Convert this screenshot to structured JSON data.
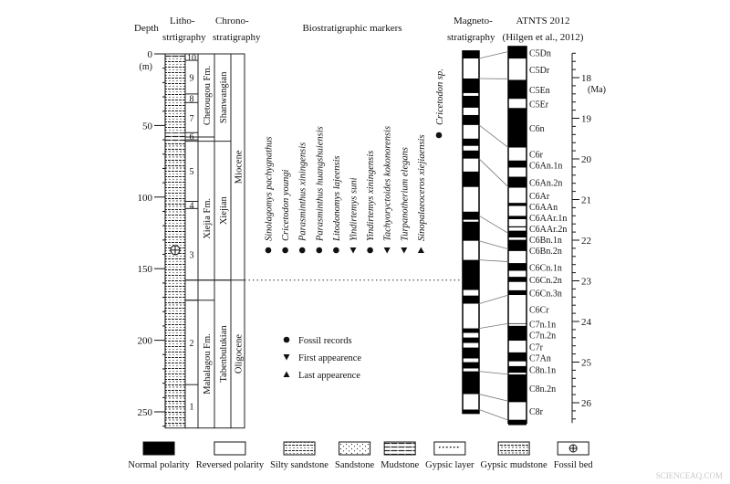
{
  "headers": {
    "depth": "Depth",
    "litho1": "Litho-",
    "litho2": "strtigraphy",
    "chrono1": "Chrono-",
    "chrono2": "stratigraphy",
    "bio": "Biostratigraphic markers",
    "magneto1": "Magneto-",
    "magneto2": "stratigraphy",
    "atnts1": "ATNTS 2012",
    "atnts2": "(Hilgen et al., 2012)"
  },
  "depth_axis": {
    "unit": "(m)",
    "labels": [
      0,
      50,
      100,
      150,
      200,
      250
    ],
    "max": 260
  },
  "age_axis": {
    "unit": "(Ma)",
    "labels": [
      18,
      19,
      20,
      21,
      22,
      23,
      24,
      25,
      26
    ]
  },
  "members": [
    {
      "label": "10",
      "top": 0,
      "bottom": 4.5
    },
    {
      "label": "9",
      "top": 4.5,
      "bottom": 28
    },
    {
      "label": "8",
      "top": 28,
      "bottom": 34
    },
    {
      "label": "7",
      "top": 34,
      "bottom": 55
    },
    {
      "label": "6",
      "top": 55,
      "bottom": 60
    },
    {
      "label": "5",
      "top": 60,
      "bottom": 103
    },
    {
      "label": "4",
      "top": 103,
      "bottom": 108
    },
    {
      "label": "3",
      "top": 108,
      "bottom": 172
    },
    {
      "label": "2",
      "top": 172,
      "bottom": 231
    },
    {
      "label": "1",
      "top": 231,
      "bottom": 261
    }
  ],
  "formations": [
    {
      "label": "Chetougou Fm.",
      "top": 0,
      "bottom": 58
    },
    {
      "label": "Xiejia Fm.",
      "top": 58,
      "bottom": 172
    },
    {
      "label": "Mahalagou Fm.",
      "top": 172,
      "bottom": 261
    }
  ],
  "stages": [
    {
      "label": "Shanwangian",
      "top": 0,
      "bottom": 61
    },
    {
      "label": "Xiejian",
      "top": 61,
      "bottom": 158
    },
    {
      "label": "Tabenbulukian",
      "top": 158,
      "bottom": 261
    }
  ],
  "epochs": [
    {
      "label": "Miocene",
      "top": 0,
      "bottom": 158
    },
    {
      "label": "Oligocene",
      "top": 158,
      "bottom": 261
    }
  ],
  "lithology": [
    {
      "type": "mudstone",
      "top": 0,
      "bottom": 3
    },
    {
      "type": "silty",
      "top": 3,
      "bottom": 55
    },
    {
      "type": "mudstone",
      "top": 55,
      "bottom": 62
    },
    {
      "type": "gypsic",
      "top": 62,
      "bottom": 80
    },
    {
      "type": "silty",
      "top": 80,
      "bottom": 100
    },
    {
      "type": "gypsic",
      "top": 100,
      "bottom": 112
    },
    {
      "type": "silty",
      "top": 112,
      "bottom": 172
    },
    {
      "type": "gypsic",
      "top": 172,
      "bottom": 176
    },
    {
      "type": "silty",
      "top": 176,
      "bottom": 228
    },
    {
      "type": "gypsic",
      "top": 228,
      "bottom": 261
    }
  ],
  "fossil_bed_depth": 137,
  "species": [
    {
      "name": "Sinolagomys pachygnathus",
      "marker": "fossil"
    },
    {
      "name": "Cricetodon youngi",
      "marker": "fossil"
    },
    {
      "name": "Parasminthus xiningensis",
      "marker": "fossil"
    },
    {
      "name": "Parasminthus huangshuiensis",
      "marker": "fossil"
    },
    {
      "name": "Litodonomys lajeensis",
      "marker": "fossil"
    },
    {
      "name": "Yindirtemys suni",
      "marker": "first"
    },
    {
      "name": "Yindirtemys xiningensis",
      "marker": "fossil"
    },
    {
      "name": "Tachyoryctoides kokonorensis",
      "marker": "first"
    },
    {
      "name": "Turpanotherium elegans",
      "marker": "first"
    },
    {
      "name": "Sinopalaeoceros xiejiaensis",
      "marker": "last"
    }
  ],
  "cricetodon_sp": {
    "name": "Cricetodon sp.",
    "marker": "fossil"
  },
  "marker_legend": [
    {
      "marker": "fossil",
      "label": "Fossil records"
    },
    {
      "marker": "first",
      "label": "First appearence"
    },
    {
      "marker": "last",
      "label": "Last appearence"
    }
  ],
  "magneto_polarity": [
    [
      "N",
      -2,
      3.2
    ],
    [
      "R",
      3.2,
      17.2
    ],
    [
      "N",
      17.2,
      27.4
    ],
    [
      "R",
      27.4,
      29.3
    ],
    [
      "N",
      29.3,
      37.6
    ],
    [
      "R",
      37.6,
      42.7
    ],
    [
      "N",
      42.7,
      49.7
    ],
    [
      "R",
      49.7,
      59.2
    ],
    [
      "N",
      59.2,
      64.3
    ],
    [
      "R",
      64.3,
      67.5
    ],
    [
      "N",
      67.5,
      73.2
    ],
    [
      "R",
      73.2,
      82.2
    ],
    [
      "N",
      82.2,
      93
    ],
    [
      "R",
      93,
      110.2
    ],
    [
      "N",
      110.2,
      115.9
    ],
    [
      "R",
      115.9,
      117.2
    ],
    [
      "N",
      117.2,
      130.6
    ],
    [
      "R",
      130.6,
      143.9
    ],
    [
      "N",
      143.9,
      164.9
    ],
    [
      "R",
      164.9,
      168.8
    ],
    [
      "N",
      168.8,
      174.5
    ],
    [
      "R",
      174.5,
      191.7
    ],
    [
      "N",
      191.7,
      194.9
    ],
    [
      "R",
      194.9,
      198.1
    ],
    [
      "N",
      198.1,
      201.9
    ],
    [
      "R",
      201.9,
      205.1
    ],
    [
      "N",
      205.1,
      212.7
    ],
    [
      "R",
      212.7,
      215.3
    ],
    [
      "N",
      215.3,
      219.7
    ],
    [
      "R",
      219.7,
      221.7
    ],
    [
      "N",
      221.7,
      237.6
    ],
    [
      "R",
      237.6,
      248.4
    ],
    [
      "N",
      248.4,
      251
    ]
  ],
  "atnts_chrons": [
    [
      "N",
      17.235,
      17.533,
      "C5Dn"
    ],
    [
      "R",
      17.533,
      18.056,
      "C5Dr"
    ],
    [
      "N",
      18.056,
      18.524,
      "C5En"
    ],
    [
      "R",
      18.524,
      18.748,
      "C5Er"
    ],
    [
      "N",
      18.748,
      19.722,
      "C6n"
    ],
    [
      "R",
      19.722,
      20.04,
      "C6r"
    ],
    [
      "N",
      20.04,
      20.213,
      "C6An.1n"
    ],
    [
      "R",
      20.213,
      20.439,
      ""
    ],
    [
      "N",
      20.439,
      20.709,
      "C6An.2n"
    ],
    [
      "R",
      20.709,
      21.083,
      "C6Ar"
    ],
    [
      "N",
      21.083,
      21.159,
      "C6AAn"
    ],
    [
      "R",
      21.159,
      21.403,
      ""
    ],
    [
      "N",
      21.403,
      21.483,
      "C6AAr.1n"
    ],
    [
      "R",
      21.483,
      21.659,
      ""
    ],
    [
      "N",
      21.659,
      21.688,
      "C6AAr.2n"
    ],
    [
      "R",
      21.688,
      21.767,
      ""
    ],
    [
      "N",
      21.767,
      21.936,
      "C6Bn.1n"
    ],
    [
      "R",
      21.936,
      21.992,
      ""
    ],
    [
      "N",
      21.992,
      22.268,
      "C6Bn.2n"
    ],
    [
      "R",
      22.268,
      22.564,
      ""
    ],
    [
      "N",
      22.564,
      22.754,
      "C6Cn.1n"
    ],
    [
      "R",
      22.754,
      22.902,
      ""
    ],
    [
      "N",
      22.902,
      23.03,
      "C6Cn.2n"
    ],
    [
      "R",
      23.03,
      23.233,
      ""
    ],
    [
      "N",
      23.233,
      23.35,
      "C6Cn.3n"
    ],
    [
      "R",
      23.35,
      24.044,
      "C6Cr"
    ],
    [
      "N",
      24.044,
      24.061,
      "C7n.1n"
    ],
    [
      "R",
      24.061,
      24.109,
      ""
    ],
    [
      "N",
      24.109,
      24.474,
      "C7n.2n"
    ],
    [
      "R",
      24.474,
      24.761,
      "C7r"
    ],
    [
      "N",
      24.761,
      24.984,
      "C7An"
    ],
    [
      "R",
      24.984,
      25.099,
      ""
    ],
    [
      "N",
      25.099,
      25.264,
      "C8n.1n"
    ],
    [
      "R",
      25.264,
      25.304,
      ""
    ],
    [
      "N",
      25.304,
      25.987,
      "C8n.2n"
    ],
    [
      "R",
      25.987,
      26.42,
      "C8r"
    ],
    [
      "N",
      26.42,
      26.55,
      ""
    ]
  ],
  "correlations": [
    [
      3.2,
      17.36
    ],
    [
      17.2,
      18.03
    ],
    [
      49.7,
      19.72
    ],
    [
      73.2,
      20.69
    ],
    [
      113,
      21.83
    ],
    [
      130.6,
      22.22
    ],
    [
      143.9,
      22.53
    ],
    [
      174.5,
      23.35
    ],
    [
      191.7,
      24.05
    ],
    [
      221.7,
      25.3
    ],
    [
      237.6,
      25.96
    ],
    [
      248.4,
      26.43
    ]
  ],
  "boundary_line_depth": 158,
  "legend": [
    {
      "key": "normal",
      "label": "Normal polarity"
    },
    {
      "key": "reversed",
      "label": "Reversed polarity"
    },
    {
      "key": "silty",
      "label": "Silty sandstone"
    },
    {
      "key": "sandstone",
      "label": "Sandstone"
    },
    {
      "key": "mudstone",
      "label": "Mudstone"
    },
    {
      "key": "gypsumlayer",
      "label": "Gypsic layer"
    },
    {
      "key": "gypsic",
      "label": "Gypsic mudstone"
    },
    {
      "key": "fossilbed",
      "label": "Fossil bed"
    }
  ],
  "watermark": "SCIENCEAQ.COM"
}
